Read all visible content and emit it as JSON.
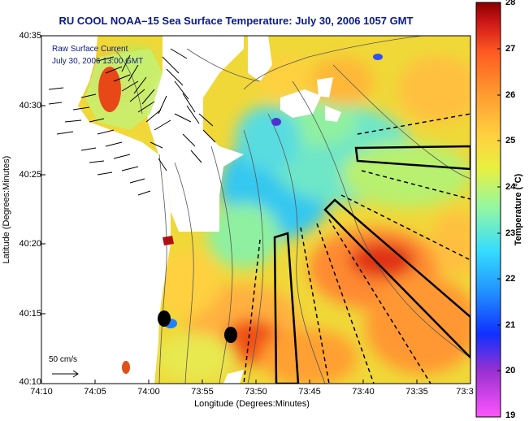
{
  "title": "RU COOL  NOAA–15  Sea Surface Temperature:  July 30, 2006 1057 GMT",
  "legend": {
    "line1": "Raw Surface Current",
    "line2": "July 30, 2006 13:00 GMT"
  },
  "scale_label": "50 cm/s",
  "axes": {
    "xlabel": "Longitude (Degrees:Minutes)",
    "ylabel": "Latitude (Degrees:Minutes)",
    "x_ticks": [
      "74:10",
      "74:05",
      "74:00",
      "73:55",
      "73:50",
      "73:45",
      "73:40",
      "73:35",
      "73:3"
    ],
    "y_ticks": [
      "40:35",
      "40:30",
      "40:25",
      "40:20",
      "40:15",
      "40:10"
    ]
  },
  "colorbar": {
    "label": "Temperature (°C)",
    "ticks": [
      "28",
      "27",
      "26",
      "25",
      "24",
      "23",
      "22",
      "21",
      "20",
      "19"
    ],
    "min": 19,
    "max": 28,
    "colors": [
      "#ff55ff",
      "#9a30d0",
      "#1030ff",
      "#2090ff",
      "#35dcff",
      "#8ef7a8",
      "#e8f040",
      "#ffd040",
      "#ff9a30",
      "#ff5a20",
      "#d01818",
      "#8a0000"
    ]
  },
  "map": {
    "land_color": "#ffffff",
    "coast_color": "#3a3a3a",
    "vector_color": "#000000",
    "outline_color": "#000000",
    "marker_color": "#000000"
  }
}
